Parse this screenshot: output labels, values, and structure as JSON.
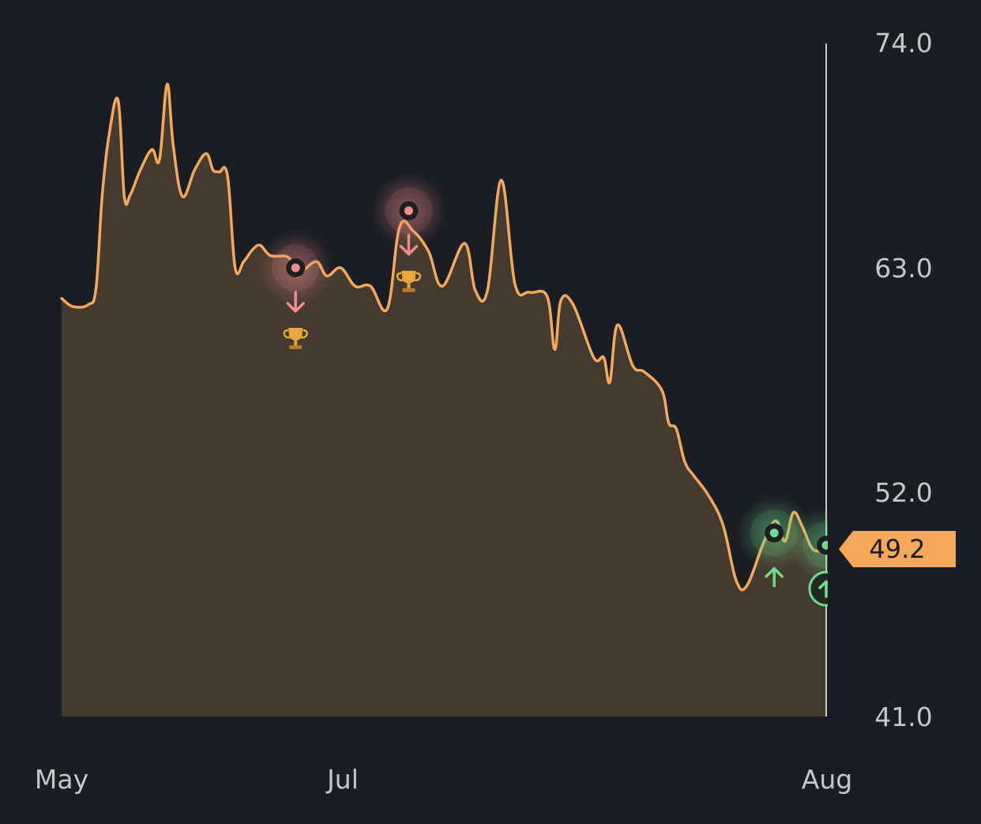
{
  "chart_data": {
    "type": "area",
    "x_ticks": [
      "May",
      "Jul",
      "Aug"
    ],
    "y_ticks": [
      74.0,
      63.0,
      52.0,
      41.0
    ],
    "y_tick_labels": [
      "74.0",
      "63.0",
      "52.0",
      "41.0"
    ],
    "ylim": [
      41.0,
      74.0
    ],
    "xlim": [
      0,
      100
    ],
    "grid": false,
    "current_value": 49.2,
    "current_value_label": "49.2",
    "colors": {
      "background": "#1a1d23",
      "line": "#f4a95a",
      "fill": "#443a2f",
      "price_tag": "#f4a95a",
      "sell_marker": "#f08c8c",
      "buy_marker": "#6fdc8c",
      "trophy": "#e8a93a",
      "cursor_line": "#c9c9c9"
    },
    "series": [
      {
        "points": [
          [
            0,
            61.5
          ],
          [
            1.5,
            61.1
          ],
          [
            3.5,
            61.2
          ],
          [
            4.5,
            62.0
          ],
          [
            5.3,
            66.5
          ],
          [
            6.2,
            69.5
          ],
          [
            7.4,
            71.2
          ],
          [
            8.2,
            66.5
          ],
          [
            9.0,
            66.6
          ],
          [
            10.3,
            67.8
          ],
          [
            11.8,
            68.8
          ],
          [
            12.8,
            68.3
          ],
          [
            13.8,
            72.0
          ],
          [
            14.6,
            69.0
          ],
          [
            15.8,
            66.5
          ],
          [
            17.4,
            67.8
          ],
          [
            18.9,
            68.6
          ],
          [
            19.8,
            67.8
          ],
          [
            20.6,
            67.7
          ],
          [
            21.7,
            67.5
          ],
          [
            22.7,
            63.0
          ],
          [
            23.8,
            63.3
          ],
          [
            25.0,
            63.9
          ],
          [
            26.0,
            64.1
          ],
          [
            27.3,
            63.6
          ],
          [
            29.7,
            63.5
          ],
          [
            30.7,
            62.6
          ],
          [
            31.7,
            62.9
          ],
          [
            33.4,
            63.3
          ],
          [
            34.7,
            62.6
          ],
          [
            36.5,
            63.0
          ],
          [
            38.4,
            62.1
          ],
          [
            40.4,
            62.1
          ],
          [
            42.6,
            61.0
          ],
          [
            44.2,
            65.0
          ],
          [
            46.0,
            64.8
          ],
          [
            48.0,
            63.8
          ],
          [
            49.8,
            62.1
          ],
          [
            52.7,
            64.2
          ],
          [
            54.1,
            61.9
          ],
          [
            55.7,
            61.9
          ],
          [
            57.5,
            67.3
          ],
          [
            59.3,
            62.2
          ],
          [
            61.2,
            61.8
          ],
          [
            63.5,
            61.6
          ],
          [
            64.5,
            59.0
          ],
          [
            65.3,
            61.4
          ],
          [
            66.9,
            61.2
          ],
          [
            69.6,
            58.6
          ],
          [
            70.9,
            58.6
          ],
          [
            71.7,
            57.4
          ],
          [
            72.7,
            60.2
          ],
          [
            74.7,
            58.2
          ],
          [
            76.2,
            57.9
          ],
          [
            78.5,
            57.0
          ],
          [
            79.4,
            55.4
          ],
          [
            80.4,
            55.1
          ],
          [
            81.5,
            53.5
          ],
          [
            82.7,
            52.8
          ],
          [
            84.5,
            51.9
          ],
          [
            86.5,
            50.4
          ],
          [
            88.2,
            47.7
          ],
          [
            89.6,
            47.4
          ],
          [
            91.8,
            49.5
          ],
          [
            93.4,
            50.6
          ],
          [
            94.6,
            49.6
          ],
          [
            95.7,
            51.0
          ],
          [
            96.9,
            50.3
          ],
          [
            98.3,
            49.2
          ],
          [
            100.0,
            49.2
          ]
        ]
      }
    ],
    "annotations": [
      {
        "type": "sell",
        "x": 30.6,
        "y": 63.0,
        "arrow": "down",
        "icon": "trophy-icon"
      },
      {
        "type": "sell",
        "x": 45.4,
        "y": 65.8,
        "arrow": "down",
        "icon": "trophy-icon"
      },
      {
        "type": "buy",
        "x": 93.2,
        "y": 50.0,
        "arrow": "up"
      },
      {
        "type": "buy",
        "x": 100.0,
        "y": 49.4,
        "arrow": "up-circle"
      }
    ]
  }
}
